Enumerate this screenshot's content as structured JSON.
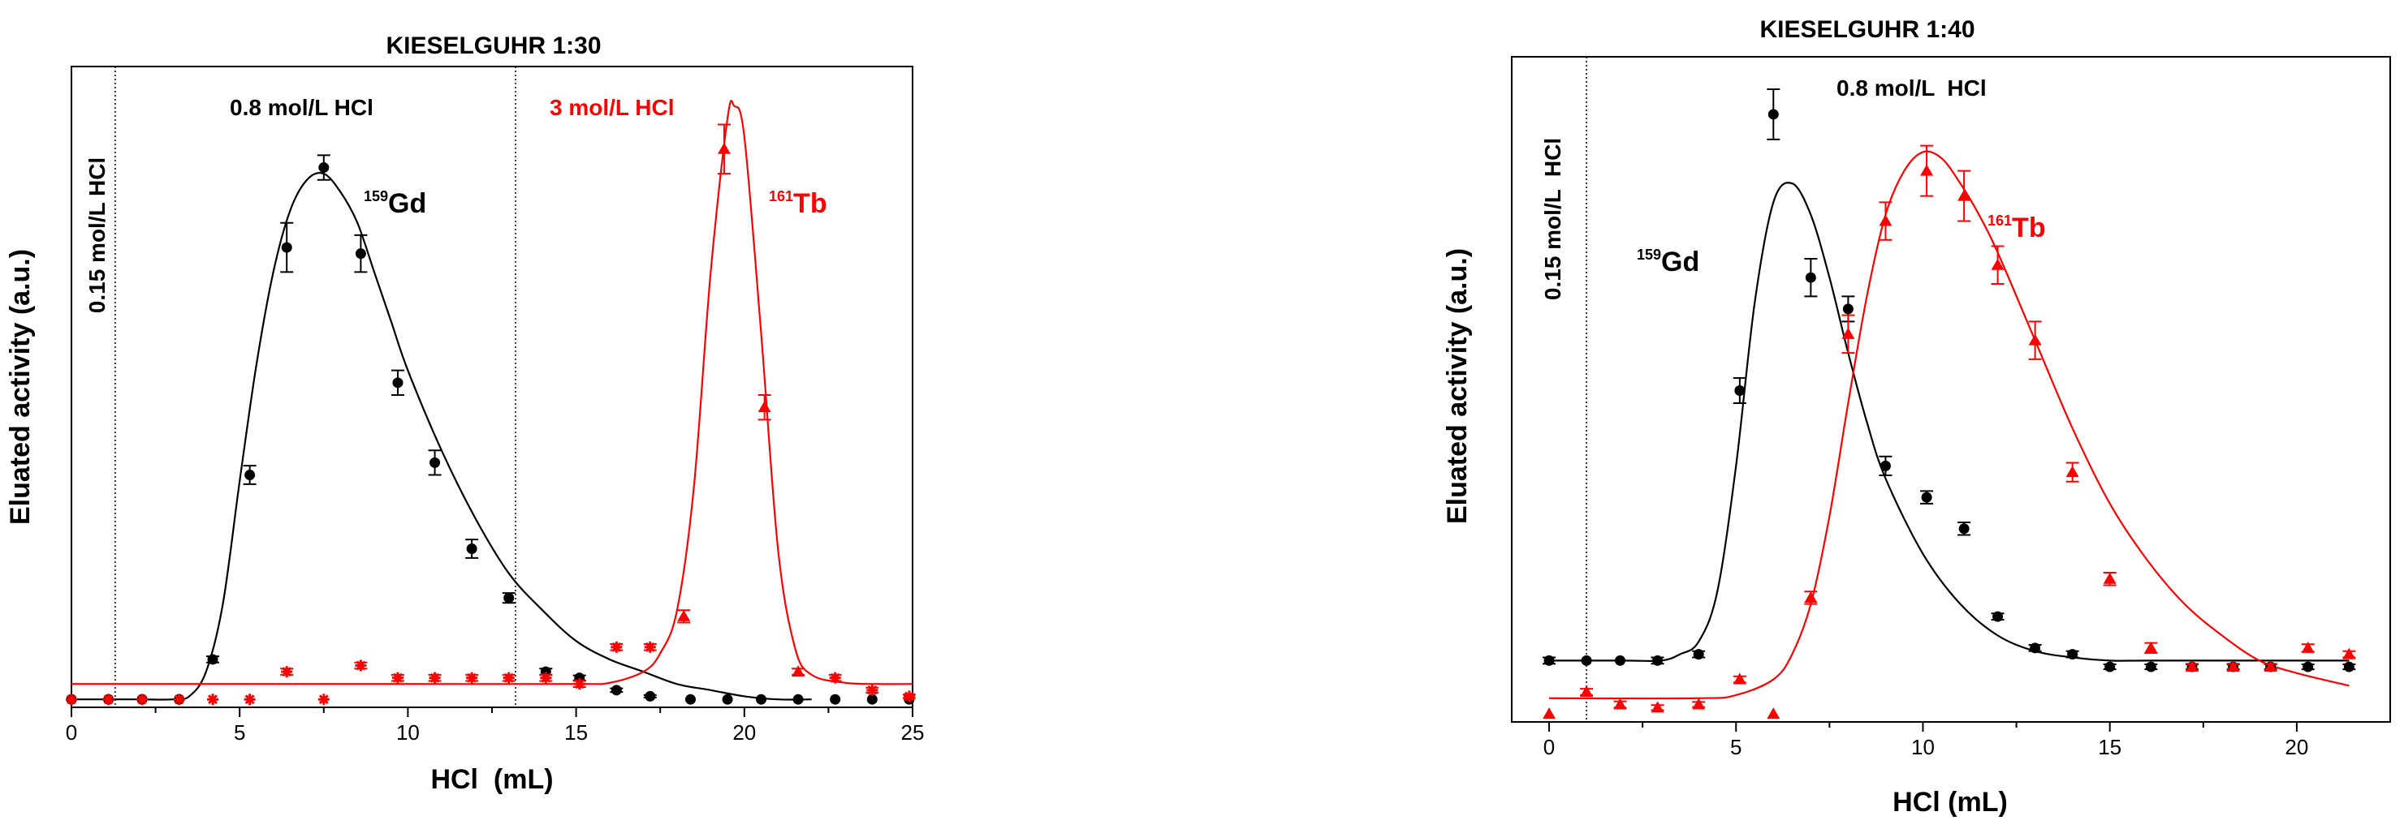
{
  "chart_data": [
    {
      "type": "scatter",
      "title": "KIESELGUHR 1:30",
      "xlabel": "HCl  (mL)",
      "ylabel": "Eluated activity (a.u.)",
      "xlim": [
        0,
        25
      ],
      "ylim": [
        0,
        1
      ],
      "x_ticks": [
        0,
        5,
        10,
        15,
        20,
        25
      ],
      "y_ticks_shown": false,
      "vlines": [
        1.3,
        13.2
      ],
      "annotations": [
        {
          "text": "0.15 mol/L HCl",
          "color": "#000000",
          "rotated": true
        },
        {
          "text": "0.8 mol/L HCl",
          "color": "#000000"
        },
        {
          "text": "3 mol/L HCl",
          "color": "#ff0000"
        },
        {
          "sup": "159",
          "text": "Gd",
          "color": "#000000"
        },
        {
          "sup": "161",
          "text": "Tb",
          "color": "#ff0000"
        }
      ],
      "series": [
        {
          "color": "#000000",
          "marker": "circle",
          "x": [
            0,
            1.1,
            2.1,
            3.2,
            4.2,
            5.3,
            6.4,
            7.5,
            8.6,
            9.7,
            10.8,
            11.9,
            13.0,
            14.1,
            15.1,
            16.2,
            17.2,
            18.4,
            19.5,
            20.5,
            21.6,
            22.7,
            23.8,
            24.9
          ],
          "y": [
            0.005,
            0.005,
            0.005,
            0.005,
            0.07,
            0.37,
            0.74,
            0.87,
            0.73,
            0.52,
            0.39,
            0.25,
            0.17,
            0.05,
            0.04,
            0.02,
            0.01,
            0.005,
            0.005,
            0.005,
            0.005,
            0.005,
            0.005,
            0.005
          ],
          "err": [
            0,
            0,
            0,
            0,
            0.005,
            0.015,
            0.04,
            0.02,
            0.03,
            0.02,
            0.02,
            0.015,
            0.008,
            0.005,
            0.004,
            0.003,
            0.002,
            0,
            0,
            0,
            0,
            0,
            0,
            0
          ]
        },
        {
          "color": "#ff0000",
          "marker": "star",
          "x": [
            0,
            1.1,
            2.1,
            3.2,
            4.2,
            5.3,
            6.4,
            7.5,
            8.6,
            9.7,
            10.8,
            11.9,
            13.0,
            14.1,
            15.1,
            16.2,
            17.2,
            22.7,
            23.8,
            24.9
          ],
          "y": [
            0.005,
            0.005,
            0.005,
            0.005,
            0.005,
            0.005,
            0.05,
            0.005,
            0.06,
            0.04,
            0.04,
            0.04,
            0.04,
            0.04,
            0.03,
            0.09,
            0.09,
            0.04,
            0.02,
            0.01
          ],
          "err": [
            0,
            0,
            0,
            0,
            0,
            0,
            0.005,
            0,
            0.005,
            0.005,
            0.005,
            0.005,
            0.005,
            0.005,
            0.005,
            0.005,
            0.005,
            0.005,
            0.004,
            0.003
          ]
        },
        {
          "color": "#ff0000",
          "marker": "triangle",
          "x": [
            18.2,
            19.4,
            20.6,
            21.6
          ],
          "y": [
            0.14,
            0.9,
            0.48,
            0.05
          ],
          "err": [
            0.01,
            0.04,
            0.02,
            0.005
          ]
        }
      ],
      "fits": [
        {
          "color": "#000000",
          "x": [
            0,
            1,
            2,
            3,
            3.5,
            4,
            4.5,
            5,
            5.5,
            6,
            6.5,
            7,
            7.5,
            8,
            8.5,
            9,
            9.5,
            10,
            11,
            12,
            13,
            14,
            15,
            16,
            17,
            18,
            19,
            20,
            21,
            22
          ],
          "y": [
            0.005,
            0.005,
            0.005,
            0.005,
            0.01,
            0.05,
            0.16,
            0.36,
            0.55,
            0.7,
            0.8,
            0.85,
            0.86,
            0.83,
            0.78,
            0.7,
            0.62,
            0.54,
            0.41,
            0.3,
            0.21,
            0.15,
            0.1,
            0.07,
            0.05,
            0.03,
            0.02,
            0.01,
            0.005,
            0.005
          ]
        },
        {
          "color": "#ff0000",
          "x": [
            0,
            5,
            10,
            15,
            16,
            17,
            17.5,
            18,
            18.5,
            19,
            19.5,
            19.7,
            20,
            20.5,
            21,
            21.5,
            22,
            23,
            24,
            25
          ],
          "y": [
            0.03,
            0.03,
            0.03,
            0.03,
            0.032,
            0.05,
            0.08,
            0.15,
            0.35,
            0.7,
            0.95,
            0.97,
            0.92,
            0.6,
            0.25,
            0.09,
            0.045,
            0.032,
            0.03,
            0.03
          ]
        }
      ]
    },
    {
      "type": "scatter",
      "title": "KIESELGUHR 1:40",
      "xlabel": "HCl (mL)",
      "ylabel": "Eluated activity (a.u.)",
      "xlim": [
        -1,
        22.5
      ],
      "ylim": [
        0,
        1
      ],
      "x_ticks": [
        0,
        5,
        10,
        15,
        20
      ],
      "y_ticks_shown": false,
      "vlines": [
        1
      ],
      "annotations": [
        {
          "text": "0.15 mol/L  HCl",
          "color": "#000000",
          "rotated": true
        },
        {
          "text": "0.8 mol/L  HCl",
          "color": "#000000"
        },
        {
          "sup": "159",
          "text": "Gd",
          "color": "#000000"
        },
        {
          "sup": "161",
          "text": "Tb",
          "color": "#ff0000"
        }
      ],
      "series": [
        {
          "color": "#000000",
          "marker": "circle",
          "x": [
            0,
            1,
            1.9,
            2.9,
            4.0,
            5.1,
            6.0,
            7.0,
            8.0,
            9.0,
            10.1,
            11.1,
            12.0,
            13.0,
            14.0,
            15.0,
            16.1,
            17.2,
            18.3,
            19.3,
            20.3,
            21.4
          ],
          "y": [
            0.09,
            0.09,
            0.09,
            0.09,
            0.1,
            0.52,
            0.96,
            0.7,
            0.65,
            0.4,
            0.35,
            0.3,
            0.16,
            0.11,
            0.1,
            0.08,
            0.08,
            0.08,
            0.08,
            0.08,
            0.08,
            0.08
          ],
          "err": [
            0.005,
            0,
            0,
            0.005,
            0.005,
            0.02,
            0.04,
            0.03,
            0.02,
            0.015,
            0.01,
            0.01,
            0.005,
            0.005,
            0.005,
            0.004,
            0.004,
            0.004,
            0.004,
            0.004,
            0.004,
            0.004
          ]
        },
        {
          "color": "#ff0000",
          "marker": "triangle",
          "x": [
            0,
            1,
            1.9,
            2.9,
            4.0,
            5.1,
            6.0,
            7.0,
            8.0,
            9.0,
            10.1,
            11.1,
            12.0,
            13.0,
            14.0,
            15.0,
            16.1,
            17.2,
            18.3,
            19.3,
            20.3,
            21.4
          ],
          "y": [
            0.005,
            0.04,
            0.02,
            0.015,
            0.02,
            0.06,
            0.005,
            0.19,
            0.61,
            0.79,
            0.87,
            0.83,
            0.72,
            0.6,
            0.39,
            0.22,
            0.11,
            0.08,
            0.08,
            0.08,
            0.11,
            0.1
          ],
          "err": [
            0,
            0.005,
            0.005,
            0.004,
            0.004,
            0.005,
            0,
            0.01,
            0.03,
            0.03,
            0.04,
            0.04,
            0.03,
            0.03,
            0.015,
            0.01,
            0.008,
            0.005,
            0.005,
            0.005,
            0.006,
            0.005
          ]
        }
      ],
      "fits": [
        {
          "color": "#000000",
          "x": [
            0,
            2,
            3,
            3.5,
            4,
            4.5,
            5,
            5.5,
            6,
            6.5,
            7,
            7.5,
            8,
            8.5,
            9,
            10,
            11,
            12,
            13,
            14,
            15,
            16,
            18,
            20,
            21.4
          ],
          "y": [
            0.09,
            0.09,
            0.09,
            0.1,
            0.12,
            0.2,
            0.4,
            0.66,
            0.82,
            0.85,
            0.8,
            0.7,
            0.58,
            0.47,
            0.38,
            0.26,
            0.18,
            0.13,
            0.105,
            0.095,
            0.09,
            0.09,
            0.09,
            0.09,
            0.09
          ]
        },
        {
          "color": "#ff0000",
          "x": [
            0,
            4,
            5,
            6,
            6.5,
            7,
            7.5,
            8,
            8.5,
            9,
            9.5,
            10,
            10.5,
            11,
            11.5,
            12,
            13,
            14,
            15,
            16,
            17,
            18,
            19,
            20,
            21.4
          ],
          "y": [
            0.03,
            0.03,
            0.035,
            0.06,
            0.1,
            0.18,
            0.32,
            0.5,
            0.67,
            0.8,
            0.87,
            0.9,
            0.89,
            0.85,
            0.8,
            0.74,
            0.6,
            0.46,
            0.34,
            0.25,
            0.18,
            0.13,
            0.09,
            0.07,
            0.05
          ]
        }
      ]
    }
  ]
}
